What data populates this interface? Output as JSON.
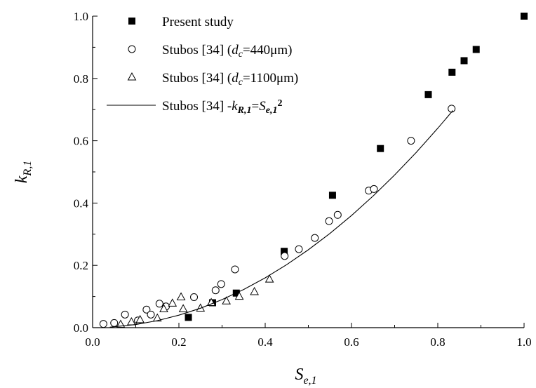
{
  "chart_data": {
    "type": "scatter",
    "title": "",
    "xlabel": {
      "main": "S",
      "sub": "e,1"
    },
    "ylabel": {
      "main": "k",
      "sub": "R,1"
    },
    "xlim": [
      0.0,
      1.0
    ],
    "ylim": [
      0.0,
      1.0
    ],
    "x_ticks": [
      "0.0",
      "0.2",
      "0.4",
      "0.6",
      "0.8",
      "1.0"
    ],
    "y_ticks": [
      "0.0",
      "0.2",
      "0.4",
      "0.6",
      "0.8",
      "1.0"
    ],
    "grid": false,
    "legend_position": "top-left",
    "series": [
      {
        "name": "Present study",
        "marker": "filled-square",
        "points": [
          [
            0.222,
            0.033
          ],
          [
            0.278,
            0.08
          ],
          [
            0.333,
            0.111
          ],
          [
            0.444,
            0.245
          ],
          [
            0.556,
            0.425
          ],
          [
            0.667,
            0.575
          ],
          [
            0.778,
            0.748
          ],
          [
            0.833,
            0.82
          ],
          [
            0.861,
            0.857
          ],
          [
            0.889,
            0.893
          ],
          [
            1.0,
            1.0
          ]
        ]
      },
      {
        "name": "Stubos [34]   (d_c=440μm)",
        "marker": "open-circle",
        "points": [
          [
            0.025,
            0.012
          ],
          [
            0.05,
            0.015
          ],
          [
            0.075,
            0.042
          ],
          [
            0.105,
            0.023
          ],
          [
            0.125,
            0.058
          ],
          [
            0.135,
            0.042
          ],
          [
            0.155,
            0.077
          ],
          [
            0.17,
            0.068
          ],
          [
            0.235,
            0.098
          ],
          [
            0.285,
            0.12
          ],
          [
            0.298,
            0.14
          ],
          [
            0.33,
            0.187
          ],
          [
            0.445,
            0.23
          ],
          [
            0.478,
            0.252
          ],
          [
            0.515,
            0.288
          ],
          [
            0.548,
            0.342
          ],
          [
            0.568,
            0.362
          ],
          [
            0.64,
            0.44
          ],
          [
            0.652,
            0.445
          ],
          [
            0.738,
            0.6
          ],
          [
            0.832,
            0.703
          ]
        ]
      },
      {
        "name": "Stubos [34]   (d_c=1100μm)",
        "marker": "open-triangle",
        "points": [
          [
            0.065,
            0.01
          ],
          [
            0.09,
            0.018
          ],
          [
            0.11,
            0.025
          ],
          [
            0.15,
            0.03
          ],
          [
            0.165,
            0.06
          ],
          [
            0.185,
            0.078
          ],
          [
            0.205,
            0.098
          ],
          [
            0.21,
            0.06
          ],
          [
            0.25,
            0.062
          ],
          [
            0.275,
            0.08
          ],
          [
            0.31,
            0.085
          ],
          [
            0.34,
            0.1
          ],
          [
            0.375,
            0.115
          ],
          [
            0.41,
            0.155
          ]
        ]
      },
      {
        "name": "Stubos [34]   -k_R,1=S_e,1^2",
        "marker": "line",
        "x": [
          0.04,
          0.1,
          0.15,
          0.2,
          0.25,
          0.3,
          0.35,
          0.4,
          0.45,
          0.5,
          0.55,
          0.6,
          0.65,
          0.7,
          0.75,
          0.8,
          0.835
        ],
        "y": [
          0.0016,
          0.01,
          0.0225,
          0.04,
          0.0625,
          0.09,
          0.1225,
          0.16,
          0.2025,
          0.25,
          0.3025,
          0.36,
          0.4225,
          0.49,
          0.5625,
          0.64,
          0.697
        ]
      }
    ],
    "legend": [
      {
        "marker": "filled-square",
        "parts": [
          {
            "t": "Present study"
          }
        ]
      },
      {
        "marker": "open-circle",
        "parts": [
          {
            "t": "Stubos [34]   ("
          },
          {
            "t": "d",
            "i": true
          },
          {
            "t": "c",
            "sub": true,
            "i": true
          },
          {
            "t": "=440μm)"
          }
        ]
      },
      {
        "marker": "open-triangle",
        "parts": [
          {
            "t": "Stubos [34]   ("
          },
          {
            "t": "d",
            "i": true
          },
          {
            "t": "c",
            "sub": true,
            "i": true
          },
          {
            "t": "=1100μm)"
          }
        ]
      },
      {
        "marker": "line",
        "parts": [
          {
            "t": "Stubos [34]   -"
          },
          {
            "t": "k",
            "i": true
          },
          {
            "t": "R,1",
            "sub": true,
            "i": true,
            "b": true
          },
          {
            "t": "="
          },
          {
            "t": "S",
            "i": true
          },
          {
            "t": "e,1",
            "sub": true,
            "i": true,
            "b": true
          },
          {
            "t": "2",
            "sup": true,
            "b": true
          }
        ]
      }
    ]
  }
}
